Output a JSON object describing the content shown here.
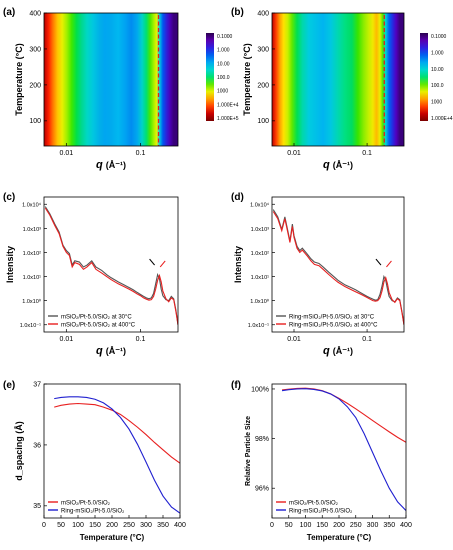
{
  "chart_data": [
    {
      "id": "a",
      "type": "heatmap",
      "panel_label": "(a)",
      "xlabel_sym": "q",
      "xlabel_unit": "(Å⁻¹)",
      "ylabel": "Temperature (°C)",
      "x_scale": "log",
      "xlim": [
        0.005,
        0.32
      ],
      "ylim": [
        30,
        400
      ],
      "x_ticks": [
        "0.01",
        "0.1"
      ],
      "y_ticks": [
        "100",
        "200",
        "300",
        "400"
      ],
      "colorbar_labels": [
        "0.1000",
        "1.000",
        "10.00",
        "100.0",
        "1000",
        "1.000E+4",
        "1.000E+5"
      ],
      "stripes": [
        {
          "q": 0.005,
          "color": "#b80000"
        },
        {
          "q": 0.0058,
          "color": "#ff2200"
        },
        {
          "q": 0.0066,
          "color": "#ff7700"
        },
        {
          "q": 0.0076,
          "color": "#ffc400"
        },
        {
          "q": 0.0088,
          "color": "#e8f000"
        },
        {
          "q": 0.0102,
          "color": "#9cf000"
        },
        {
          "q": 0.0118,
          "color": "#3fe800"
        },
        {
          "q": 0.0138,
          "color": "#00e04a"
        },
        {
          "q": 0.016,
          "color": "#00d88c"
        },
        {
          "q": 0.019,
          "color": "#00d7c4"
        },
        {
          "q": 0.023,
          "color": "#00c7e0"
        },
        {
          "q": 0.028,
          "color": "#00b0e8"
        },
        {
          "q": 0.033,
          "color": "#00a6f0"
        },
        {
          "q": 0.04,
          "color": "#00aaee"
        },
        {
          "q": 0.05,
          "color": "#00b8f0"
        },
        {
          "q": 0.062,
          "color": "#00a3f2"
        },
        {
          "q": 0.075,
          "color": "#008cf0"
        },
        {
          "q": 0.09,
          "color": "#00a8ee"
        },
        {
          "q": 0.105,
          "color": "#00d2c8"
        },
        {
          "q": 0.12,
          "color": "#00e070"
        },
        {
          "q": 0.135,
          "color": "#4ae800"
        },
        {
          "q": 0.15,
          "color": "#a0f000"
        },
        {
          "q": 0.165,
          "color": "#ecf000"
        },
        {
          "q": 0.18,
          "color": "#00d0e0"
        },
        {
          "q": 0.2,
          "color": "#0058f0"
        },
        {
          "q": 0.225,
          "color": "#3020d8"
        },
        {
          "q": 0.25,
          "color": "#4a00b8"
        },
        {
          "q": 0.28,
          "color": "#38007a"
        }
      ],
      "dashed_q": 0.175
    },
    {
      "id": "b",
      "type": "heatmap",
      "panel_label": "(b)",
      "xlabel_sym": "q",
      "xlabel_unit": "(Å⁻¹)",
      "ylabel": "Temperature (°C)",
      "x_scale": "log",
      "xlim": [
        0.005,
        0.32
      ],
      "ylim": [
        30,
        400
      ],
      "x_ticks": [
        "0.01",
        "0.1"
      ],
      "y_ticks": [
        "100",
        "200",
        "300",
        "400"
      ],
      "colorbar_labels": [
        "0.1000",
        "1.000",
        "10.00",
        "100.0",
        "1000",
        "1.000E+4"
      ],
      "stripes": [
        {
          "q": 0.005,
          "color": "#c00000"
        },
        {
          "q": 0.0057,
          "color": "#ff4000"
        },
        {
          "q": 0.0064,
          "color": "#ffa000"
        },
        {
          "q": 0.0072,
          "color": "#ffe000"
        },
        {
          "q": 0.0082,
          "color": "#c8f000"
        },
        {
          "q": 0.0094,
          "color": "#60e800"
        },
        {
          "q": 0.011,
          "color": "#00e050"
        },
        {
          "q": 0.013,
          "color": "#00d8a8"
        },
        {
          "q": 0.016,
          "color": "#00cce0"
        },
        {
          "q": 0.02,
          "color": "#00c0e8"
        },
        {
          "q": 0.025,
          "color": "#00b4f0"
        },
        {
          "q": 0.032,
          "color": "#00c8e0"
        },
        {
          "q": 0.04,
          "color": "#00d8b0"
        },
        {
          "q": 0.05,
          "color": "#00e080"
        },
        {
          "q": 0.062,
          "color": "#00dc60"
        },
        {
          "q": 0.075,
          "color": "#38e400"
        },
        {
          "q": 0.09,
          "color": "#8cec00"
        },
        {
          "q": 0.105,
          "color": "#c4f000"
        },
        {
          "q": 0.12,
          "color": "#f0e800"
        },
        {
          "q": 0.135,
          "color": "#ffb800"
        },
        {
          "q": 0.15,
          "color": "#e8f000"
        },
        {
          "q": 0.165,
          "color": "#40e800"
        },
        {
          "q": 0.18,
          "color": "#00d0d8"
        },
        {
          "q": 0.2,
          "color": "#0060f0"
        },
        {
          "q": 0.225,
          "color": "#2828e0"
        },
        {
          "q": 0.25,
          "color": "#5000c0"
        },
        {
          "q": 0.28,
          "color": "#3a007c"
        }
      ],
      "dashed_q": 0.172
    },
    {
      "id": "c",
      "type": "line",
      "panel_label": "(c)",
      "xlabel_sym": "q",
      "xlabel_unit": "(Å⁻¹)",
      "ylabel": "Intensity",
      "x_scale": "log",
      "y_scale": "log",
      "xlim": [
        0.005,
        0.32
      ],
      "ylim": [
        0.05,
        20000
      ],
      "x_ticks": [
        "0.01",
        "0.1"
      ],
      "y_ticks": [
        "1.0x10⁻¹",
        "1.0x10⁰",
        "1.0x10¹",
        "1.0x10²",
        "1.0x10³",
        "1.0x10⁴"
      ],
      "legend": [
        "mSiO₂/Pt-5.0/SiO₂ at 30°C",
        "mSiO₂/Pt-5.0/SiO₂ at 400°C"
      ],
      "legend_position": "lower-left",
      "series": [
        {
          "name": "mSiO₂/Pt-5.0/SiO₂ at 30°C",
          "color": "#555555",
          "x": [
            0.0052,
            0.006,
            0.007,
            0.008,
            0.009,
            0.01,
            0.011,
            0.012,
            0.013,
            0.015,
            0.017,
            0.019,
            0.022,
            0.025,
            0.03,
            0.035,
            0.04,
            0.05,
            0.06,
            0.07,
            0.08,
            0.09,
            0.1,
            0.11,
            0.12,
            0.13,
            0.14,
            0.15,
            0.16,
            0.17,
            0.18,
            0.19,
            0.2,
            0.22,
            0.24,
            0.26,
            0.28,
            0.3,
            0.32
          ],
          "y": [
            8000,
            4000,
            1500,
            700,
            200,
            120,
            90,
            30,
            45,
            40,
            25,
            30,
            45,
            25,
            18,
            12,
            9,
            6,
            4.5,
            3.5,
            2.8,
            2.2,
            1.8,
            1.5,
            1.3,
            1.2,
            1.3,
            2,
            5,
            12,
            8,
            3,
            1.6,
            1.1,
            1.0,
            1.5,
            1.2,
            0.4,
            0.1
          ]
        },
        {
          "name": "mSiO₂/Pt-5.0/SiO₂ at 400°C",
          "color": "#e82020",
          "x": [
            0.0052,
            0.006,
            0.007,
            0.008,
            0.009,
            0.01,
            0.011,
            0.012,
            0.013,
            0.015,
            0.017,
            0.019,
            0.022,
            0.025,
            0.03,
            0.035,
            0.04,
            0.05,
            0.06,
            0.07,
            0.08,
            0.09,
            0.1,
            0.11,
            0.12,
            0.13,
            0.14,
            0.15,
            0.16,
            0.17,
            0.18,
            0.19,
            0.2,
            0.22,
            0.24,
            0.26,
            0.28,
            0.3,
            0.32
          ],
          "y": [
            7000,
            3500,
            1300,
            600,
            180,
            100,
            75,
            25,
            38,
            32,
            20,
            25,
            38,
            20,
            14,
            10,
            7.5,
            5,
            3.8,
            3,
            2.4,
            1.9,
            1.6,
            1.3,
            1.15,
            1.05,
            1.1,
            1.5,
            3,
            7,
            11,
            6,
            2.5,
            1.2,
            0.9,
            1.3,
            1.1,
            0.35,
            0.1
          ]
        }
      ]
    },
    {
      "id": "d",
      "type": "line",
      "panel_label": "(d)",
      "xlabel_sym": "q",
      "xlabel_unit": "(Å⁻¹)",
      "ylabel": "Intensity",
      "x_scale": "log",
      "y_scale": "log",
      "xlim": [
        0.005,
        0.32
      ],
      "ylim": [
        0.05,
        20000
      ],
      "x_ticks": [
        "0.01",
        "0.1"
      ],
      "y_ticks": [
        "1.0x10⁻¹",
        "1.0x10⁰",
        "1.0x10¹",
        "1.0x10²",
        "1.0x10³",
        "1.0x10⁴"
      ],
      "legend": [
        "Ring-mSiO₂/Pt-5.0/SiO₂ at 30°C",
        "Ring-mSiO₂/Pt-5.0/SiO₂ at 400°C"
      ],
      "legend_position": "lower-left",
      "series": [
        {
          "name": "Ring-mSiO₂/Pt-5.0/SiO₂ at 30°C",
          "color": "#555555",
          "x": [
            0.0052,
            0.006,
            0.0068,
            0.0075,
            0.008,
            0.0088,
            0.0095,
            0.01,
            0.011,
            0.012,
            0.013,
            0.015,
            0.017,
            0.019,
            0.022,
            0.025,
            0.03,
            0.035,
            0.04,
            0.05,
            0.06,
            0.07,
            0.08,
            0.09,
            0.1,
            0.11,
            0.12,
            0.13,
            0.14,
            0.15,
            0.16,
            0.17,
            0.18,
            0.19,
            0.2,
            0.22,
            0.24,
            0.26,
            0.28,
            0.3,
            0.32
          ],
          "y": [
            6000,
            3000,
            900,
            3000,
            1200,
            300,
            1500,
            500,
            180,
            120,
            150,
            90,
            55,
            40,
            35,
            25,
            15,
            10,
            7,
            4.5,
            3.5,
            2.8,
            2.2,
            1.8,
            1.5,
            1.3,
            1.15,
            1.05,
            1.1,
            1.8,
            4,
            10,
            7,
            3,
            1.5,
            1.0,
            0.9,
            1.3,
            1.1,
            0.35,
            0.1
          ]
        },
        {
          "name": "Ring-mSiO₂/Pt-5.0/SiO₂ at 400°C",
          "color": "#e82020",
          "x": [
            0.0052,
            0.006,
            0.0068,
            0.0075,
            0.008,
            0.0088,
            0.0095,
            0.01,
            0.011,
            0.012,
            0.013,
            0.015,
            0.017,
            0.019,
            0.022,
            0.025,
            0.03,
            0.035,
            0.04,
            0.05,
            0.06,
            0.07,
            0.08,
            0.09,
            0.1,
            0.11,
            0.12,
            0.13,
            0.14,
            0.15,
            0.16,
            0.17,
            0.18,
            0.19,
            0.2,
            0.22,
            0.24,
            0.26,
            0.28,
            0.3,
            0.32
          ],
          "y": [
            5000,
            2500,
            800,
            2500,
            1000,
            260,
            1200,
            420,
            150,
            100,
            125,
            75,
            45,
            32,
            28,
            20,
            12,
            8,
            5.8,
            3.8,
            2.9,
            2.3,
            1.9,
            1.6,
            1.35,
            1.15,
            1.0,
            0.95,
            1.0,
            1.3,
            2.5,
            6,
            9,
            5,
            2.2,
            1.1,
            0.85,
            1.2,
            1.0,
            0.32,
            0.1
          ]
        }
      ]
    },
    {
      "id": "e",
      "type": "line",
      "panel_label": "(e)",
      "xlabel": "Temperature (°C)",
      "ylabel": "d_spacing (Å)",
      "xlim": [
        0,
        400
      ],
      "ylim": [
        34.8,
        37.0
      ],
      "x_ticks": [
        "0",
        "50",
        "100",
        "150",
        "200",
        "250",
        "300",
        "350",
        "400"
      ],
      "y_ticks": [
        "35",
        "36",
        "37"
      ],
      "legend": [
        "mSiO₂/Pt-5.0/SiO₂",
        "Ring-mSiO₂/Pt-5.0/SiO₂"
      ],
      "legend_position": "lower-left",
      "series": [
        {
          "name": "mSiO₂/Pt-5.0/SiO₂",
          "color": "#e82020",
          "x": [
            30,
            50,
            75,
            100,
            125,
            150,
            175,
            200,
            225,
            250,
            275,
            300,
            325,
            350,
            375,
            400
          ],
          "y": [
            36.62,
            36.65,
            36.67,
            36.68,
            36.67,
            36.66,
            36.62,
            36.57,
            36.5,
            36.4,
            36.29,
            36.17,
            36.04,
            35.92,
            35.8,
            35.7
          ]
        },
        {
          "name": "Ring-mSiO₂/Pt-5.0/SiO₂",
          "color": "#2020d0",
          "x": [
            30,
            50,
            75,
            100,
            125,
            150,
            175,
            200,
            225,
            250,
            275,
            300,
            325,
            350,
            375,
            400
          ],
          "y": [
            36.76,
            36.78,
            36.79,
            36.79,
            36.78,
            36.75,
            36.69,
            36.59,
            36.45,
            36.26,
            36.01,
            35.72,
            35.42,
            35.16,
            34.98,
            34.88
          ]
        }
      ]
    },
    {
      "id": "f",
      "type": "line",
      "panel_label": "(f)",
      "xlabel": "Temperature (°C)",
      "ylabel": "Relative Particle Size",
      "xlim": [
        0,
        400
      ],
      "ylim": [
        94.8,
        100.2
      ],
      "x_ticks": [
        "0",
        "50",
        "100",
        "150",
        "200",
        "250",
        "300",
        "350",
        "400"
      ],
      "y_ticks": [
        "96%",
        "98%",
        "100%"
      ],
      "legend": [
        "mSiO₂/Pt-5.0/SiO₂",
        "Ring-mSiO₂/Pt-5.0/SiO₂"
      ],
      "legend_position": "lower-left",
      "series": [
        {
          "name": "mSiO₂/Pt-5.0/SiO₂",
          "color": "#e82020",
          "x": [
            30,
            50,
            75,
            100,
            125,
            150,
            175,
            200,
            225,
            250,
            275,
            300,
            325,
            350,
            375,
            400
          ],
          "y": [
            99.96,
            99.99,
            100.02,
            100.03,
            100.0,
            99.93,
            99.8,
            99.62,
            99.42,
            99.2,
            98.97,
            98.73,
            98.5,
            98.27,
            98.05,
            97.85
          ]
        },
        {
          "name": "Ring-mSiO₂/Pt-5.0/SiO₂",
          "color": "#2020d0",
          "x": [
            30,
            50,
            75,
            100,
            125,
            150,
            175,
            200,
            225,
            250,
            275,
            300,
            325,
            350,
            375,
            400
          ],
          "y": [
            99.93,
            99.97,
            100.0,
            100.01,
            99.98,
            99.92,
            99.8,
            99.6,
            99.28,
            98.85,
            98.2,
            97.45,
            96.7,
            96.0,
            95.45,
            95.1
          ]
        }
      ]
    }
  ]
}
